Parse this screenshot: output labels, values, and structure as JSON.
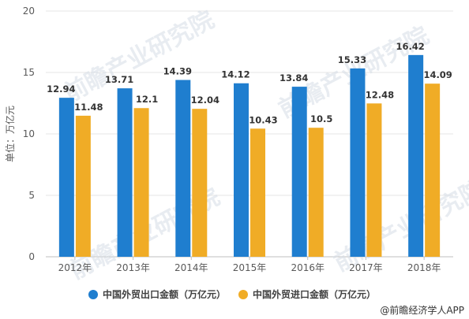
{
  "chart_data": {
    "type": "bar",
    "ylabel": "单位：万亿元",
    "ylim": [
      0,
      20
    ],
    "yticks": [
      "0",
      "5",
      "10",
      "15",
      "20"
    ],
    "grid": true,
    "legend_position": "bottom",
    "categories": [
      "2012年",
      "2013年",
      "2014年",
      "2015年",
      "2016年",
      "2017年",
      "2018年"
    ],
    "series": [
      {
        "name": "中国外贸出口金额（万亿元）",
        "color": "#1f7ecf",
        "values": [
          12.94,
          13.71,
          14.39,
          14.12,
          13.84,
          15.33,
          16.42
        ],
        "labels": [
          "12.94",
          "13.71",
          "14.39",
          "14.12",
          "13.84",
          "15.33",
          "16.42"
        ]
      },
      {
        "name": "中国外贸进口金额（万亿元）",
        "color": "#f0ac26",
        "values": [
          11.48,
          12.1,
          12.04,
          10.43,
          10.5,
          12.48,
          14.09
        ],
        "labels": [
          "11.48",
          "12.1",
          "12.04",
          "10.43",
          "10.5",
          "12.48",
          "14.09"
        ]
      }
    ]
  },
  "watermark": "前瞻产业研究院",
  "credit": "@前瞻经济学人APP"
}
